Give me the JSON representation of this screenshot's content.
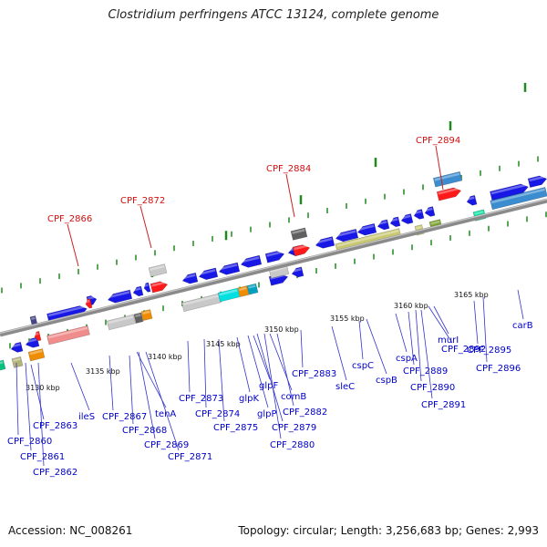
{
  "title": "Clostridium perfringens ATCC 13124, complete genome",
  "footer": {
    "accession": "Accession: NC_008261",
    "topology": "Topology: circular; Length: 3,256,683 bp; Genes: 2,993"
  },
  "colors": {
    "axis": "#909090",
    "tick": "#1e8a1e",
    "gene_label": "#0000c8",
    "highlight_label": "#d01010",
    "leader": "#3333cc",
    "highlight_leader": "#cc2222",
    "cds_forward": "#1818e6",
    "cds_reverse": "#1818e6"
  },
  "scale_labels": [
    "3130 kbp",
    "3135 kbp",
    "3140 kbp",
    "3145 kbp",
    "3150 kbp",
    "3155 kbp",
    "3160 kbp",
    "3165 kbp"
  ],
  "highlighted_genes": [
    "CPF_2866",
    "CPF_2872",
    "CPF_2884",
    "CPF_2894"
  ],
  "gene_labels": [
    "CPF_2860",
    "CPF_2861",
    "CPF_2862",
    "CPF_2863",
    "ileS",
    "CPF_2867",
    "CPF_2868",
    "tenA",
    "CPF_2869",
    "CPF_2871",
    "CPF_2873",
    "CPF_2874",
    "CPF_2875",
    "glpK",
    "glpF",
    "glpP",
    "CPF_2879",
    "comB",
    "CPF_2880",
    "CPF_2882",
    "CPF_2883",
    "sleC",
    "cspC",
    "cspB",
    "cspA",
    "CPF_2889",
    "CPF_2890",
    "CPF_2891",
    "murI",
    "CPF_2892",
    "CPF_2895",
    "CPF_2896",
    "carB"
  ]
}
